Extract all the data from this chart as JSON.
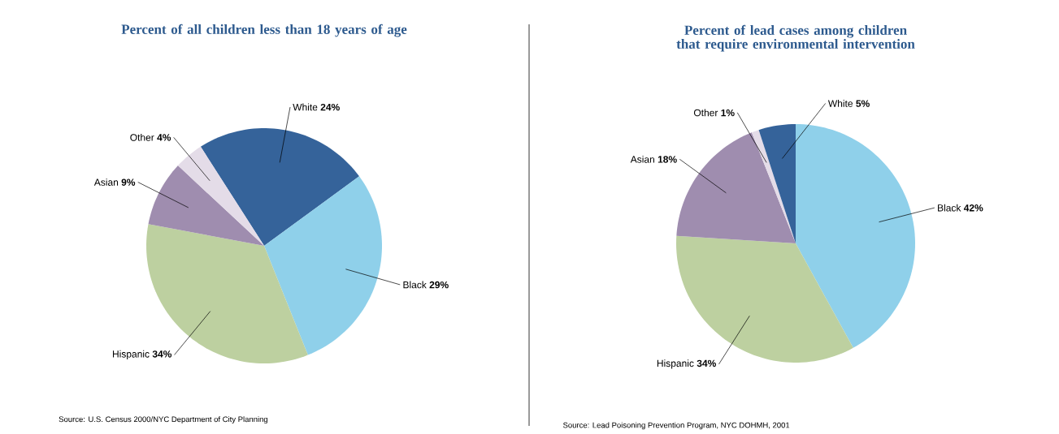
{
  "chart_data": [
    {
      "type": "pie",
      "title": "Percent of all children less than 18 years of age",
      "categories": [
        "White",
        "Black",
        "Hispanic",
        "Asian",
        "Other"
      ],
      "values": [
        24,
        29,
        34,
        9,
        4
      ],
      "value_labels": [
        "24%",
        "29%",
        "34%",
        "9%",
        "4%"
      ],
      "colors": [
        "#35639a",
        "#8fd0ea",
        "#bdd0a0",
        "#9f8daf",
        "#e4dce8"
      ],
      "annotations": [
        "Source: U.S. Census 2000/NYC Department of City Planning"
      ]
    },
    {
      "type": "pie",
      "title": "Percent of lead cases among children that require environmental intervention",
      "categories": [
        "Black",
        "Hispanic",
        "Asian",
        "Other",
        "White"
      ],
      "values": [
        42,
        34,
        18,
        1,
        5
      ],
      "value_labels": [
        "42%",
        "34%",
        "18%",
        "1%",
        "5%"
      ],
      "colors": [
        "#8fd0ea",
        "#bdd0a0",
        "#9f8daf",
        "#e4dce8",
        "#35639a"
      ],
      "annotations": [
        "Source: Lead Poisoning Prevention Program, NYC DOHMH, 2001"
      ]
    }
  ]
}
